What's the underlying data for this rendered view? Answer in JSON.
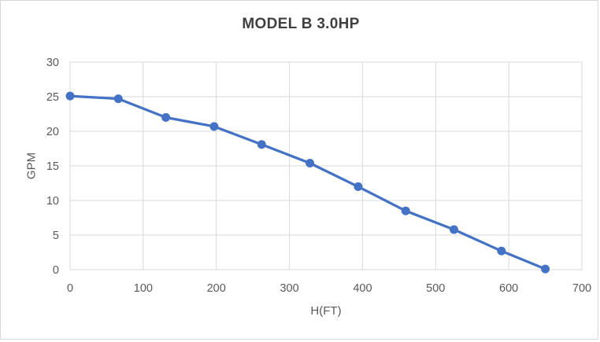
{
  "window": {
    "background": "#ffffff",
    "border_color": "#d6d6d6"
  },
  "chart_data": {
    "type": "line",
    "title": "MODEL B 3.0HP",
    "xlabel": "H(FT)",
    "ylabel": "GPM",
    "x": [
      0,
      66,
      131,
      197,
      262,
      328,
      394,
      459,
      525,
      590,
      650
    ],
    "y": [
      25.1,
      24.7,
      22.0,
      20.7,
      18.1,
      15.4,
      12.0,
      8.5,
      5.8,
      2.7,
      0.1
    ],
    "xlim": [
      0,
      700
    ],
    "ylim": [
      0,
      30
    ],
    "xticks": [
      0,
      100,
      200,
      300,
      400,
      500,
      600,
      700
    ],
    "yticks": [
      0,
      5,
      10,
      15,
      20,
      25,
      30
    ],
    "grid": true,
    "legend": "none",
    "colors": {
      "line": "#4472c4",
      "marker": "#4472c4",
      "gridline": "#d9d9d9",
      "plot_border": "#d9d9d9",
      "tick_label": "#595959",
      "axis_title": "#595959",
      "title": "#404040"
    }
  }
}
